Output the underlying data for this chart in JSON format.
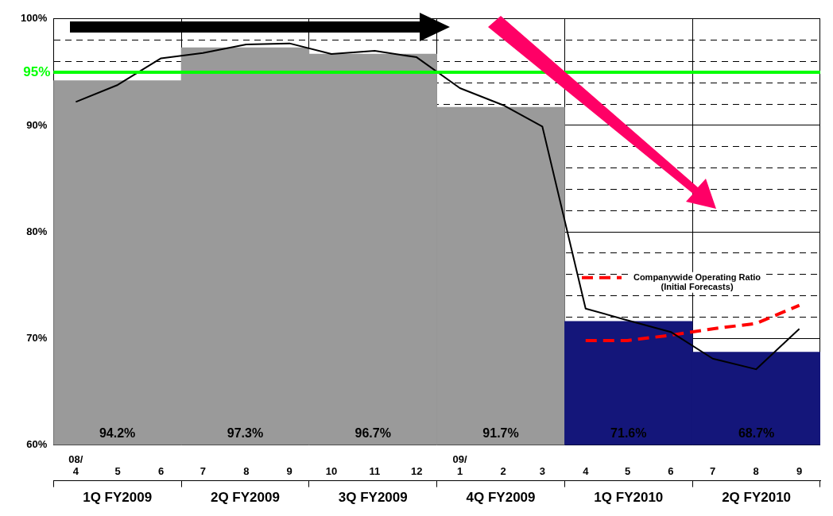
{
  "chart_data": {
    "type": "bar",
    "categories": [
      "1Q FY2009",
      "2Q FY2009",
      "3Q FY2009",
      "4Q FY2009",
      "1Q FY2010",
      "2Q FY2010"
    ],
    "series": [
      {
        "colors": [
          "#9a9a9a",
          "#9a9a9a",
          "#9a9a9a",
          "#9a9a9a",
          "#14167a",
          "#14167a"
        ],
        "values": [
          94.2,
          97.3,
          96.7,
          91.7,
          71.6,
          68.7
        ],
        "value_labels": [
          "94.2%",
          "97.3%",
          "96.7%",
          "91.7%",
          "71.6%",
          "68.7%"
        ]
      },
      {
        "type": "line",
        "axis": "x2",
        "color": "#000000",
        "x": [
          "2008-04",
          "2008-05",
          "2008-06",
          "2008-07",
          "2008-08",
          "2008-09",
          "2008-10",
          "2008-11",
          "2008-12",
          "2009-01",
          "2009-02",
          "2009-03",
          "2009-04",
          "2009-05",
          "2009-06",
          "2009-07",
          "2009-08",
          "2009-09"
        ],
        "values": [
          92.2,
          93.8,
          96.3,
          96.8,
          97.6,
          97.7,
          96.7,
          97.0,
          96.4,
          93.5,
          91.9,
          89.9,
          72.8,
          71.7,
          70.6,
          68.1,
          67.1,
          70.9
        ]
      },
      {
        "type": "line",
        "axis": "x2",
        "name": "Companywide Operating Ratio\n(Initial Forecasts)",
        "color": "#ff0000",
        "line_style": "dashed",
        "x": [
          "2009-04",
          "2009-05",
          "2009-06",
          "2009-07",
          "2009-08",
          "2009-09"
        ],
        "values": [
          69.8,
          69.8,
          70.3,
          70.9,
          71.4,
          73.1
        ]
      }
    ],
    "x2lim": [
      "2008-03-16",
      "2009-09-16"
    ],
    "x2ticks": [
      {
        "value": "2008-04",
        "label": "08/\n4"
      },
      {
        "value": "2008-05",
        "label": "5"
      },
      {
        "value": "2008-06",
        "label": "6"
      },
      {
        "value": "2008-07",
        "label": "7"
      },
      {
        "value": "2008-08",
        "label": "8"
      },
      {
        "value": "2008-09",
        "label": "9"
      },
      {
        "value": "2008-10",
        "label": "10"
      },
      {
        "value": "2008-11",
        "label": "11"
      },
      {
        "value": "2008-12",
        "label": "12"
      },
      {
        "value": "2009-01",
        "label": "09/\n1"
      },
      {
        "value": "2009-02",
        "label": "2"
      },
      {
        "value": "2009-03",
        "label": "3"
      },
      {
        "value": "2009-04",
        "label": "4"
      },
      {
        "value": "2009-05",
        "label": "5"
      },
      {
        "value": "2009-06",
        "label": "6"
      },
      {
        "value": "2009-07",
        "label": "7"
      },
      {
        "value": "2009-08",
        "label": "8"
      },
      {
        "value": "2009-09",
        "label": "9"
      }
    ],
    "ylim": [
      60,
      100
    ],
    "yticks": [
      {
        "value": 60,
        "label": "60%"
      },
      {
        "value": 70,
        "label": "70%"
      },
      {
        "value": 72,
        "label": null
      },
      {
        "value": 74,
        "label": null
      },
      {
        "value": 76,
        "label": null
      },
      {
        "value": 78,
        "label": null
      },
      {
        "value": 80,
        "label": "80%"
      },
      {
        "value": 82,
        "label": null
      },
      {
        "value": 84,
        "label": null
      },
      {
        "value": 86,
        "label": null
      },
      {
        "value": 88,
        "label": null
      },
      {
        "value": 90,
        "label": "90%"
      },
      {
        "value": 92,
        "label": null
      },
      {
        "value": 94,
        "label": null
      },
      {
        "value": 96,
        "label": null
      },
      {
        "value": 98,
        "label": null
      },
      {
        "value": 100,
        "label": "100%"
      }
    ],
    "ref_lines": [
      {
        "axis": "y",
        "value": 95,
        "label": "95%",
        "color": "#00ff00"
      }
    ],
    "grid": true,
    "legend": "right"
  }
}
